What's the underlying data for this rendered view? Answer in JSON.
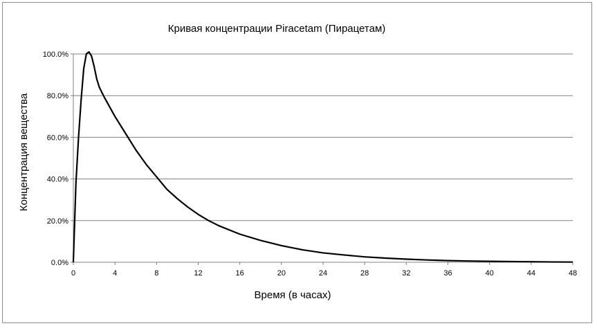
{
  "chart_data": {
    "type": "line",
    "title": "Кривая концентрации Piracetam (Пирацетам)",
    "xlabel": "Время (в часах)",
    "ylabel": "Концентрация вещества",
    "xlim": [
      0,
      48
    ],
    "ylim": [
      0,
      100
    ],
    "x_ticks": [
      0,
      4,
      8,
      12,
      16,
      20,
      24,
      28,
      32,
      36,
      40,
      44,
      48
    ],
    "x_tick_labels": [
      "0",
      "4",
      "8",
      "12",
      "16",
      "20",
      "24",
      "28",
      "32",
      "36",
      "40",
      "44",
      "48"
    ],
    "y_ticks": [
      0,
      20,
      40,
      60,
      80,
      100
    ],
    "y_tick_labels": [
      "0.0%",
      "20.0%",
      "40.0%",
      "60.0%",
      "80.0%",
      "100.0%"
    ],
    "grid": "horizontal",
    "legend": "none",
    "series": [
      {
        "color": "#000000",
        "x": [
          0,
          0.25,
          0.5,
          0.75,
          1.0,
          1.25,
          1.5,
          1.75,
          2.0,
          2.25,
          2.5,
          3,
          4,
          5,
          6,
          7,
          8,
          9,
          10,
          11,
          12,
          13,
          14,
          16,
          18,
          20,
          22,
          24,
          26,
          28,
          30,
          32,
          34,
          36,
          38,
          40,
          42,
          44,
          46,
          48
        ],
        "y": [
          0,
          38,
          60,
          78,
          93,
          100,
          101,
          99,
          94,
          88,
          84,
          79,
          70,
          62,
          54,
          47,
          41,
          35,
          30.5,
          26.5,
          23,
          20,
          17.5,
          13.5,
          10.5,
          8,
          6,
          4.5,
          3.5,
          2.6,
          2,
          1.5,
          1.1,
          0.8,
          0.6,
          0.45,
          0.35,
          0.25,
          0.15,
          0.1
        ]
      }
    ]
  }
}
